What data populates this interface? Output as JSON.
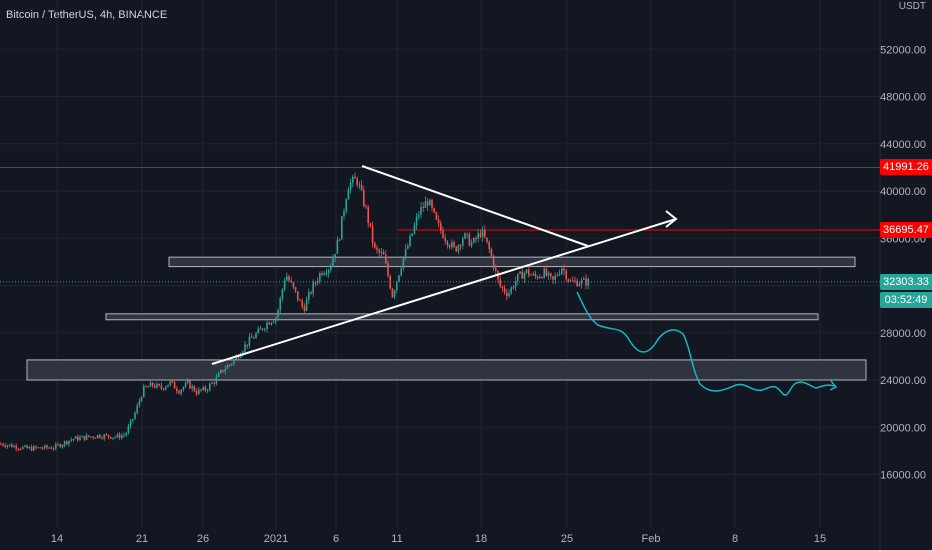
{
  "symbol": "Bitcoin / TetherUS, 4h, BINANCE",
  "unit_label": "USDT",
  "colors": {
    "background": "#131722",
    "grid": "#1f2431",
    "up": "#26a69a",
    "down": "#ef5350",
    "resistance": "#ff0000",
    "projection": "#13b8c4",
    "trendline": "#ffffff",
    "zone": "#363a45",
    "price_dotted": "#26a69a"
  },
  "price_tags": [
    {
      "label": "41991.26",
      "color": "#ff0000"
    },
    {
      "label": "36695.47",
      "color": "#ff0000"
    },
    {
      "label": "32303.33",
      "color": "#26a69a"
    },
    {
      "label": "03:52:49",
      "color": "#26a69a"
    }
  ],
  "chart_data": {
    "type": "candlestick",
    "title": "Bitcoin / TetherUS, 4h, BINANCE",
    "ylabel": "USDT",
    "y_ticks": [
      "16000.00",
      "20000.00",
      "24000.00",
      "28000.00",
      "32000.00",
      "36000.00",
      "40000.00",
      "44000.00",
      "48000.00",
      "52000.00"
    ],
    "x_ticks": [
      "14",
      "21",
      "26",
      "2021",
      "6",
      "11",
      "18",
      "25",
      "Feb",
      "8",
      "15"
    ],
    "ylim": [
      13800,
      56600
    ],
    "grid": true,
    "price_path": [
      [
        0,
        18600
      ],
      [
        3,
        18200
      ],
      [
        6,
        18300
      ],
      [
        8,
        19000
      ],
      [
        11,
        19300
      ],
      [
        13,
        19200
      ],
      [
        14,
        19400
      ],
      [
        15,
        21000
      ],
      [
        16,
        23200
      ],
      [
        17,
        23600
      ],
      [
        18,
        23300
      ],
      [
        19,
        23800
      ],
      [
        20,
        23100
      ],
      [
        21,
        23700
      ],
      [
        22,
        23000
      ],
      [
        23,
        23200
      ],
      [
        24,
        23900
      ],
      [
        25,
        24900
      ],
      [
        26,
        25500
      ],
      [
        27,
        26500
      ],
      [
        28,
        27400
      ],
      [
        29,
        28100
      ],
      [
        30,
        28900
      ],
      [
        31,
        29400
      ],
      [
        32,
        33000
      ],
      [
        33,
        31500
      ],
      [
        34,
        30000
      ],
      [
        35,
        31800
      ],
      [
        36,
        33200
      ],
      [
        37,
        33600
      ],
      [
        38,
        36000
      ],
      [
        39,
        40500
      ],
      [
        40,
        41000
      ],
      [
        41,
        38500
      ],
      [
        42,
        35000
      ],
      [
        43,
        34500
      ],
      [
        44,
        31200
      ],
      [
        45,
        33800
      ],
      [
        46,
        35900
      ],
      [
        47,
        38200
      ],
      [
        48,
        39200
      ],
      [
        49,
        37200
      ],
      [
        50,
        36000
      ],
      [
        51,
        35000
      ],
      [
        52,
        36200
      ],
      [
        53,
        35500
      ],
      [
        54,
        36600
      ],
      [
        55,
        34800
      ],
      [
        56,
        32000
      ],
      [
        57,
        31300
      ],
      [
        58,
        32600
      ],
      [
        59,
        33200
      ],
      [
        60,
        32700
      ],
      [
        61,
        33100
      ],
      [
        62,
        32300
      ],
      [
        63,
        33600
      ],
      [
        64,
        32303
      ]
    ],
    "resistance_levels": [
      41991.26,
      36695.47
    ],
    "zones": [
      {
        "from": 33600,
        "to": 34400
      },
      {
        "from": 29100,
        "to": 29600
      },
      {
        "from": 24000,
        "to": 25700
      }
    ],
    "triangle": {
      "upper": [
        [
          28.5,
          41500
        ],
        [
          40,
          35000
        ]
      ],
      "lower": [
        [
          8.9,
          25000
        ],
        [
          40,
          35000
        ]
      ],
      "arrow_to": [
        44,
        38000
      ]
    },
    "current_price": 32303.33,
    "projection": [
      [
        38.8,
        31500
      ],
      [
        39.5,
        29800
      ],
      [
        41,
        29000
      ],
      [
        43,
        28200
      ],
      [
        45,
        26600
      ],
      [
        46.5,
        28500
      ],
      [
        47.5,
        29200
      ],
      [
        48.5,
        26600
      ],
      [
        49.5,
        24300
      ],
      [
        51,
        23400
      ],
      [
        53,
        24000
      ],
      [
        54,
        23500
      ],
      [
        55.5,
        23200
      ],
      [
        56.5,
        24000
      ],
      [
        58,
        23600
      ],
      [
        59,
        23800
      ],
      [
        60,
        23400
      ],
      [
        61.5,
        23700
      ]
    ]
  }
}
